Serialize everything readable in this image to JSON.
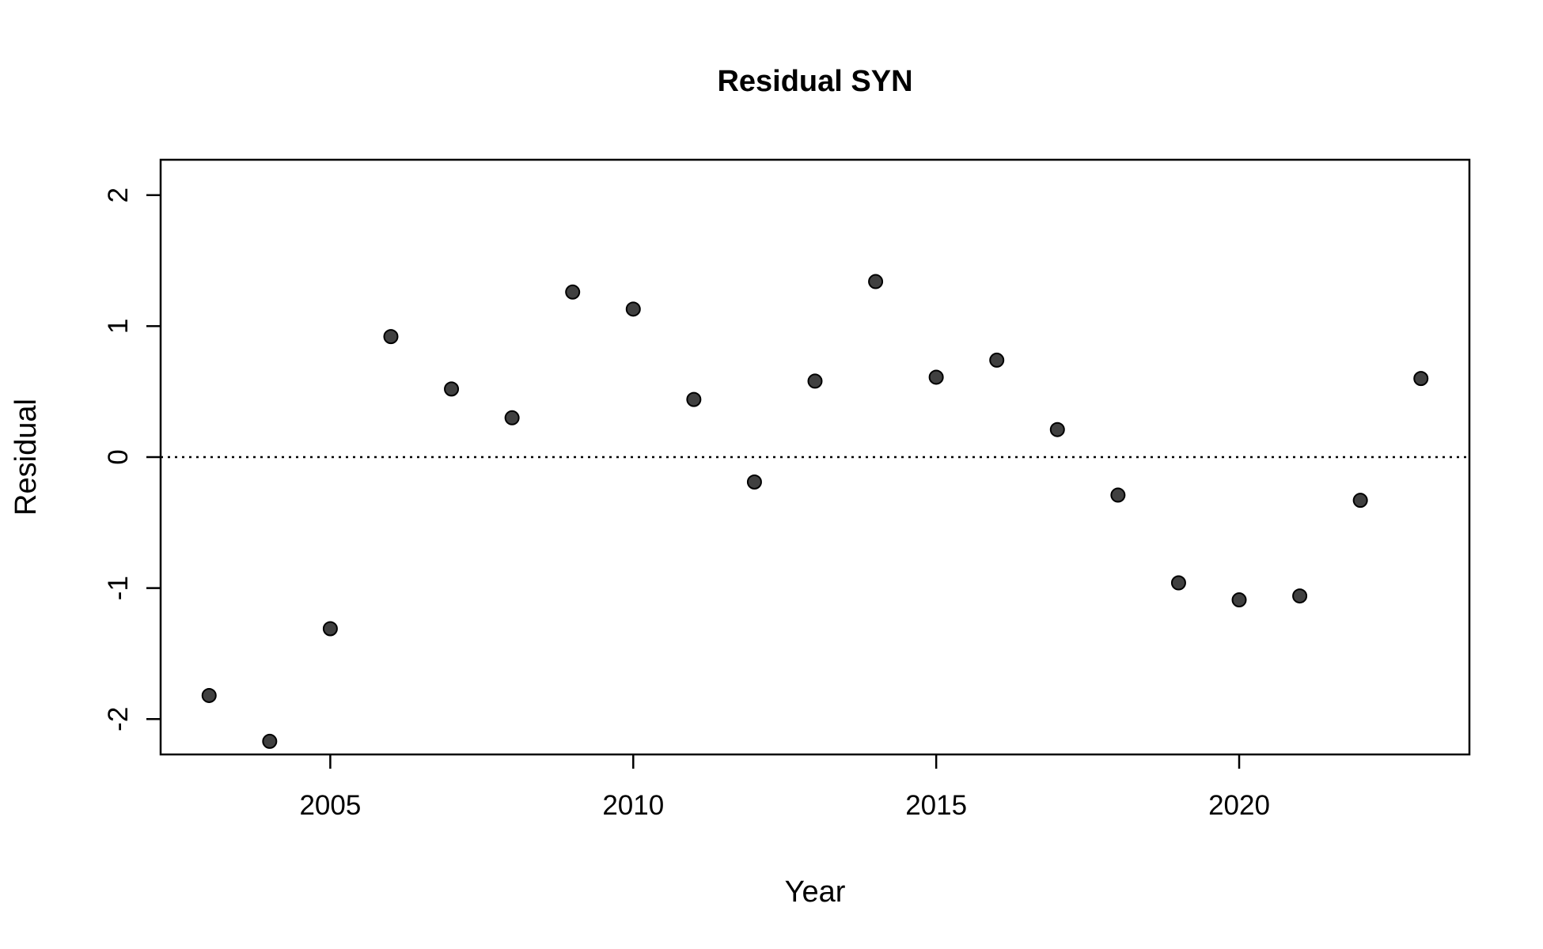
{
  "chart_data": {
    "type": "scatter",
    "title": "Residual SYN",
    "xlabel": "Year",
    "ylabel": "Residual",
    "xlim": [
      2002.2,
      2023.8
    ],
    "ylim": [
      -2.27,
      2.27
    ],
    "x_ticks": [
      2005,
      2010,
      2015,
      2020
    ],
    "y_ticks": [
      -2,
      -1,
      0,
      1,
      2
    ],
    "x": [
      2003,
      2004,
      2005,
      2006,
      2007,
      2008,
      2009,
      2010,
      2011,
      2012,
      2013,
      2014,
      2015,
      2016,
      2017,
      2018,
      2019,
      2020,
      2021,
      2022,
      2023
    ],
    "y": [
      -1.82,
      -2.17,
      -1.31,
      0.92,
      0.52,
      0.3,
      1.26,
      1.13,
      0.44,
      -0.19,
      0.58,
      1.34,
      0.61,
      0.74,
      0.21,
      -0.29,
      -0.96,
      -1.09,
      -1.06,
      -0.33,
      0.6
    ],
    "reference_line": {
      "y": 0,
      "style": "dotted"
    },
    "marker_color": "#404040",
    "grid": false,
    "legend": "none"
  }
}
